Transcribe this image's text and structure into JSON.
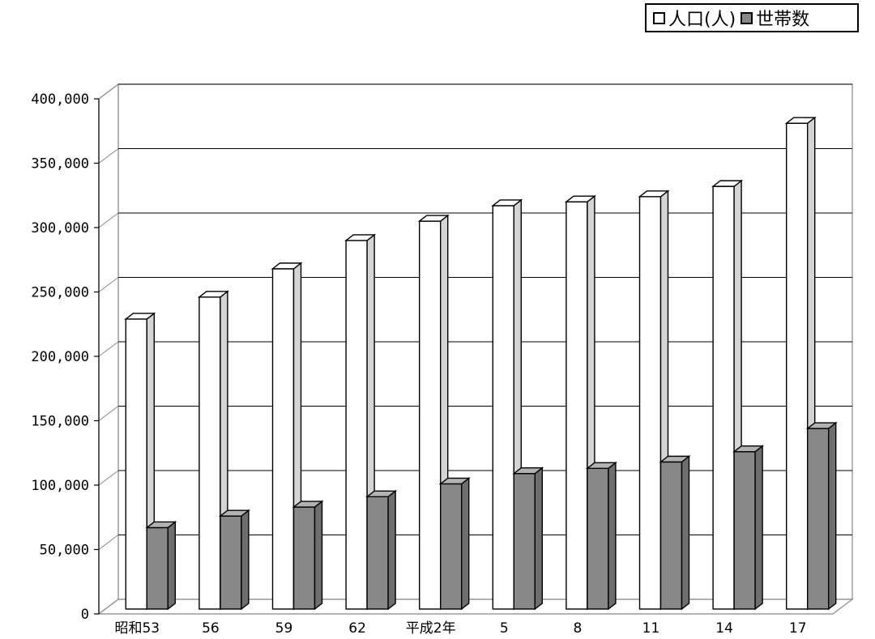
{
  "chart_data": {
    "type": "bar",
    "categories": [
      "昭和53",
      "56",
      "59",
      "62",
      "平成2年",
      "5",
      "8",
      "11",
      "14",
      "17"
    ],
    "series": [
      {
        "name": "人口(人)",
        "values": [
          229000,
          246000,
          268000,
          290000,
          305000,
          317000,
          320000,
          324000,
          332000,
          381000
        ],
        "color": "#ffffff"
      },
      {
        "name": "世帯数",
        "values": [
          67000,
          76000,
          83000,
          91000,
          101000,
          109000,
          113000,
          118000,
          126000,
          144000
        ],
        "color": "#888888"
      }
    ],
    "yticks": [
      "0",
      "50,000",
      "100,000",
      "150,000",
      "200,000",
      "250,000",
      "300,000",
      "350,000",
      "400,000"
    ],
    "ylim": [
      0,
      400000
    ],
    "grid": true,
    "legend_position": "top-right",
    "style": "3d-clustered-column"
  },
  "colors": {
    "grid": "#000000",
    "side_white": "#d4d4d4",
    "side_gray": "#6e6e6e",
    "top_gray": "#b2b2b2"
  }
}
